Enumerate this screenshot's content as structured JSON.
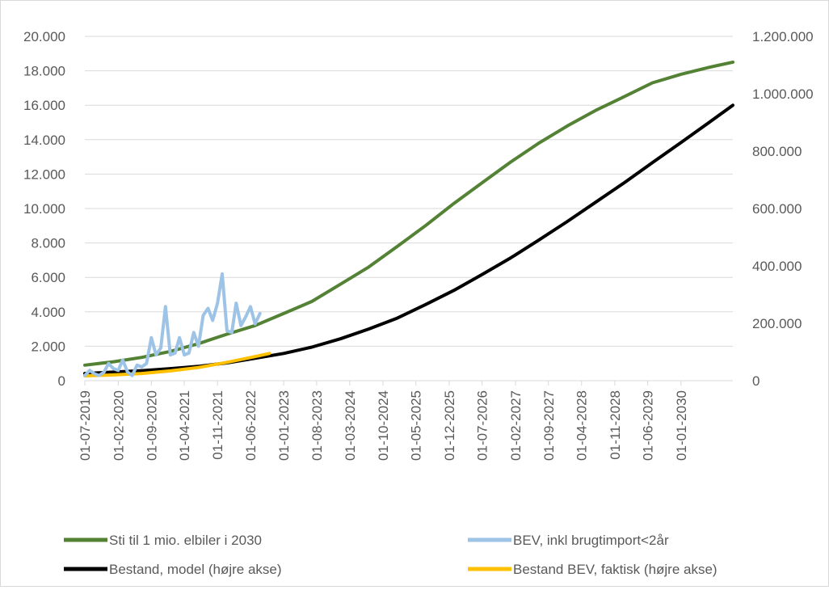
{
  "chart_data": {
    "type": "line",
    "x_ticks": [
      "01-07-2019",
      "01-02-2020",
      "01-09-2020",
      "01-04-2021",
      "01-11-2021",
      "01-06-2022",
      "01-01-2023",
      "01-08-2023",
      "01-03-2024",
      "01-10-2024",
      "01-05-2025",
      "01-12-2025",
      "01-07-2026",
      "01-02-2027",
      "01-09-2027",
      "01-04-2028",
      "01-11-2028",
      "01-06-2029",
      "01-01-2030"
    ],
    "x_range": [
      "2019-07-01",
      "2030-12-01"
    ],
    "y_left": {
      "min": 0,
      "max": 20000,
      "step": 2000,
      "tick_labels": [
        "0",
        "2.000",
        "4.000",
        "6.000",
        "8.000",
        "10.000",
        "12.000",
        "14.000",
        "16.000",
        "18.000",
        "20.000"
      ]
    },
    "y_right": {
      "min": 0,
      "max": 1200000,
      "step": 200000,
      "tick_labels": [
        "0",
        "200.000",
        "400.000",
        "600.000",
        "800.000",
        "1.000.000",
        "1.200.000"
      ]
    },
    "grid": "horizontal",
    "legend_position": "bottom",
    "series": [
      {
        "name": "Sti til 1 mio. elbiler i 2030",
        "axis": "left",
        "color": "#548235",
        "points": [
          [
            "2019-07-01",
            900
          ],
          [
            "2020-01-01",
            1100
          ],
          [
            "2020-07-01",
            1350
          ],
          [
            "2021-01-01",
            1700
          ],
          [
            "2021-07-01",
            2150
          ],
          [
            "2022-01-01",
            2700
          ],
          [
            "2022-07-01",
            3200
          ],
          [
            "2023-01-01",
            3900
          ],
          [
            "2023-07-01",
            4600
          ],
          [
            "2024-01-01",
            5600
          ],
          [
            "2024-07-01",
            6600
          ],
          [
            "2025-01-01",
            7800
          ],
          [
            "2025-07-01",
            9000
          ],
          [
            "2026-01-01",
            10300
          ],
          [
            "2026-07-01",
            11500
          ],
          [
            "2027-01-01",
            12700
          ],
          [
            "2027-07-01",
            13800
          ],
          [
            "2028-01-01",
            14800
          ],
          [
            "2028-07-01",
            15700
          ],
          [
            "2029-01-01",
            16500
          ],
          [
            "2029-07-01",
            17300
          ],
          [
            "2030-01-01",
            17800
          ],
          [
            "2030-07-01",
            18200
          ],
          [
            "2030-12-01",
            18500
          ]
        ]
      },
      {
        "name": "BEV, inkl brugtimport<2år",
        "axis": "left",
        "color": "#9dc3e6",
        "points": [
          [
            "2019-07-01",
            300
          ],
          [
            "2019-08-01",
            600
          ],
          [
            "2019-09-01",
            400
          ],
          [
            "2019-10-01",
            300
          ],
          [
            "2019-11-01",
            500
          ],
          [
            "2019-12-01",
            1000
          ],
          [
            "2020-01-01",
            700
          ],
          [
            "2020-02-01",
            600
          ],
          [
            "2020-03-01",
            1200
          ],
          [
            "2020-04-01",
            500
          ],
          [
            "2020-05-01",
            300
          ],
          [
            "2020-06-01",
            900
          ],
          [
            "2020-07-01",
            800
          ],
          [
            "2020-08-01",
            1000
          ],
          [
            "2020-09-01",
            2500
          ],
          [
            "2020-10-01",
            1500
          ],
          [
            "2020-11-01",
            1900
          ],
          [
            "2020-12-01",
            4300
          ],
          [
            "2021-01-01",
            1500
          ],
          [
            "2021-02-01",
            1600
          ],
          [
            "2021-03-01",
            2500
          ],
          [
            "2021-04-01",
            1500
          ],
          [
            "2021-05-01",
            1600
          ],
          [
            "2021-06-01",
            2800
          ],
          [
            "2021-07-01",
            2000
          ],
          [
            "2021-08-01",
            3800
          ],
          [
            "2021-09-01",
            4200
          ],
          [
            "2021-10-01",
            3500
          ],
          [
            "2021-11-01",
            4500
          ],
          [
            "2021-12-01",
            6200
          ],
          [
            "2022-01-01",
            2900
          ],
          [
            "2022-02-01",
            2800
          ],
          [
            "2022-03-01",
            4500
          ],
          [
            "2022-04-01",
            3200
          ],
          [
            "2022-05-01",
            3700
          ],
          [
            "2022-06-01",
            4300
          ],
          [
            "2022-07-01",
            3300
          ],
          [
            "2022-08-01",
            3900
          ]
        ]
      },
      {
        "name": "Bestand, model (højre akse)",
        "axis": "right",
        "color": "#000000",
        "points": [
          [
            "2019-07-01",
            25000
          ],
          [
            "2020-01-01",
            30000
          ],
          [
            "2020-07-01",
            35000
          ],
          [
            "2021-01-01",
            42000
          ],
          [
            "2021-07-01",
            50000
          ],
          [
            "2022-01-01",
            62000
          ],
          [
            "2022-07-01",
            78000
          ],
          [
            "2023-01-01",
            95000
          ],
          [
            "2023-07-01",
            117000
          ],
          [
            "2024-01-01",
            146000
          ],
          [
            "2024-07-01",
            180000
          ],
          [
            "2025-01-01",
            218000
          ],
          [
            "2025-07-01",
            265000
          ],
          [
            "2026-01-01",
            315000
          ],
          [
            "2026-07-01",
            370000
          ],
          [
            "2027-01-01",
            428000
          ],
          [
            "2027-07-01",
            490000
          ],
          [
            "2028-01-01",
            555000
          ],
          [
            "2028-07-01",
            622000
          ],
          [
            "2029-01-01",
            690000
          ],
          [
            "2029-07-01",
            760000
          ],
          [
            "2030-01-01",
            830000
          ],
          [
            "2030-07-01",
            900000
          ],
          [
            "2030-12-01",
            960000
          ]
        ]
      },
      {
        "name": "Bestand BEV, faktisk (højre akse)",
        "axis": "right",
        "color": "#ffc000",
        "points": [
          [
            "2019-07-01",
            17000
          ],
          [
            "2020-01-01",
            20000
          ],
          [
            "2020-07-01",
            25000
          ],
          [
            "2021-01-01",
            34000
          ],
          [
            "2021-07-01",
            46000
          ],
          [
            "2022-01-01",
            64000
          ],
          [
            "2022-07-01",
            84000
          ],
          [
            "2022-10-01",
            95000
          ]
        ]
      }
    ]
  }
}
